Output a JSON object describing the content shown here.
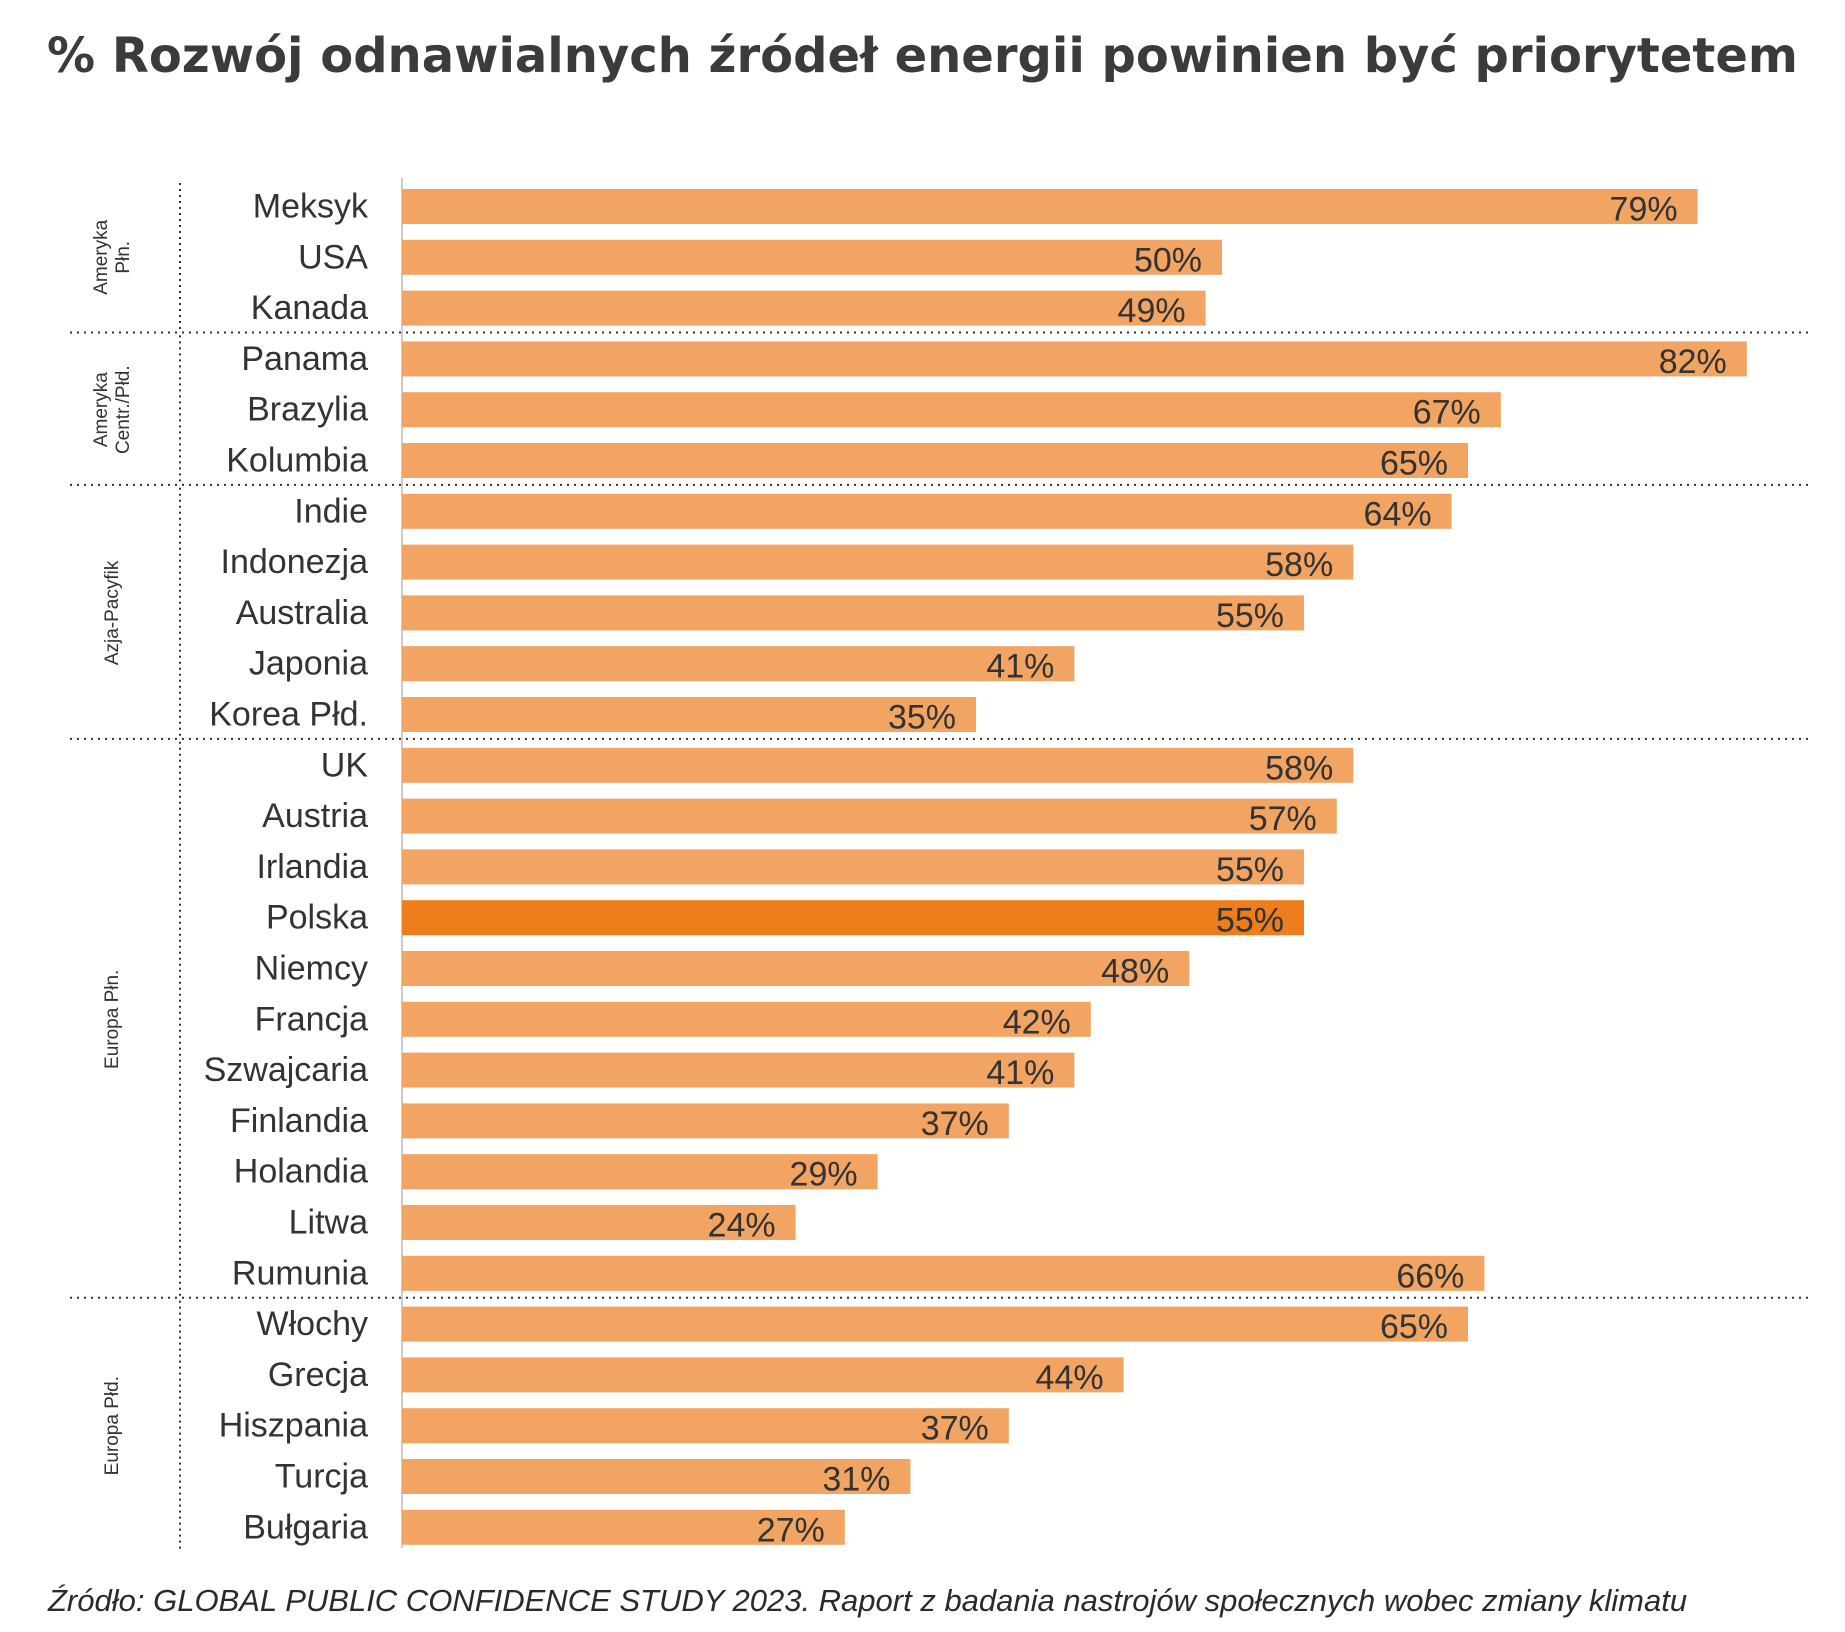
{
  "chart_data": {
    "type": "bar",
    "orientation": "horizontal",
    "title": "% Rozwój odnawialnych źródeł energii powinien być priorytetem",
    "xlabel": "",
    "ylabel": "",
    "xlim": [
      0,
      100
    ],
    "value_suffix": "%",
    "highlight": "Polska",
    "groups": [
      {
        "label_lines": [
          "Ameryka",
          "Płn."
        ],
        "categories": [
          "Meksyk",
          "USA",
          "Kanada"
        ],
        "values": [
          79,
          50,
          49
        ]
      },
      {
        "label_lines": [
          "Ameryka",
          "Centr./Płd."
        ],
        "categories": [
          "Panama",
          "Brazylia",
          "Kolumbia"
        ],
        "values": [
          82,
          67,
          65
        ]
      },
      {
        "label_lines": [
          "Azja-Pacyfik"
        ],
        "categories": [
          "Indie",
          "Indonezja",
          "Australia",
          "Japonia",
          "Korea Płd."
        ],
        "values": [
          64,
          58,
          55,
          41,
          35
        ]
      },
      {
        "label_lines": [
          "Europa Płn."
        ],
        "categories": [
          "UK",
          "Austria",
          "Irlandia",
          "Polska",
          "Niemcy",
          "Francja",
          "Szwajcaria",
          "Finlandia",
          "Holandia",
          "Litwa",
          "Rumunia"
        ],
        "values": [
          58,
          57,
          55,
          55,
          48,
          42,
          41,
          37,
          29,
          24,
          66
        ]
      },
      {
        "label_lines": [
          "Europa Płd."
        ],
        "categories": [
          "Włochy",
          "Grecja",
          "Hiszpania",
          "Turcja",
          "Bułgaria"
        ],
        "values": [
          65,
          44,
          37,
          31,
          27
        ]
      }
    ],
    "colors": {
      "bar": "#f2a462",
      "highlight": "#ee7d1c",
      "text": "#333333",
      "divider": "#333333",
      "axis": "#cccccc"
    }
  },
  "source": "Źródło: GLOBAL PUBLIC CONFIDENCE STUDY 2023. Raport z badania nastrojów społecznych wobec zmiany klimatu"
}
